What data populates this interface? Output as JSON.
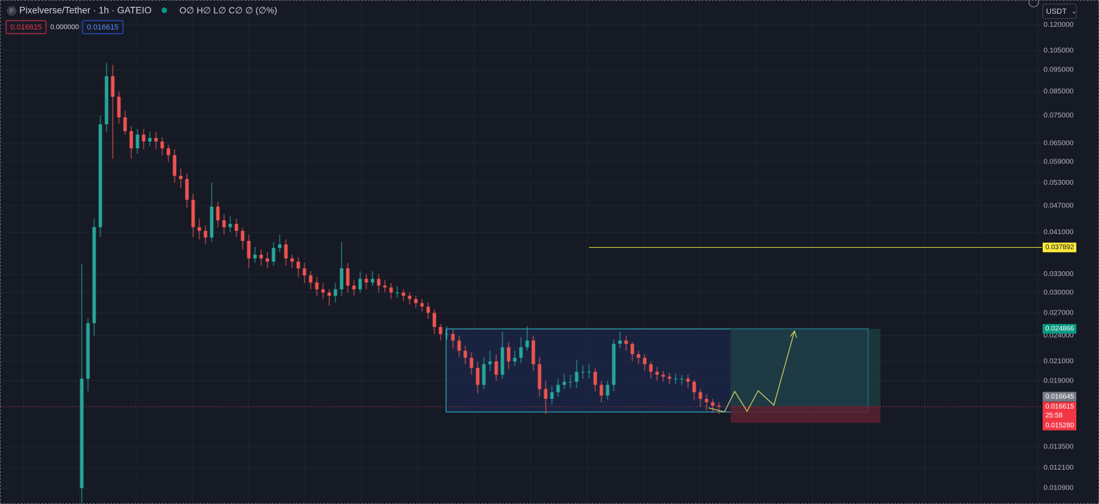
{
  "chart_data": {
    "type": "candlestick",
    "title": "Pixelverse/Tether · 1h · GATEIO",
    "legend_text": "O∅ H∅ L∅ C∅ ∅ (∅%)",
    "currency": "USDT",
    "header_values": [
      "0.016615",
      "0.000000",
      "0.016615"
    ],
    "countdown": "25:58",
    "log_scale": true,
    "up_color": "#26a69a",
    "down_color": "#ef5350",
    "ylim": [
      0.01,
      0.136
    ],
    "yticks": [
      {
        "value": 0.12,
        "label": "0.120000"
      },
      {
        "value": 0.105,
        "label": "0.105000"
      },
      {
        "value": 0.095,
        "label": "0.095000"
      },
      {
        "value": 0.085,
        "label": "0.085000"
      },
      {
        "value": 0.075,
        "label": "0.075000"
      },
      {
        "value": 0.065,
        "label": "0.065000"
      },
      {
        "value": 0.059,
        "label": "0.059000"
      },
      {
        "value": 0.053,
        "label": "0.053000"
      },
      {
        "value": 0.047,
        "label": "0.047000"
      },
      {
        "value": 0.041,
        "label": "0.041000"
      },
      {
        "value": 0.033,
        "label": "0.033000"
      },
      {
        "value": 0.03,
        "label": "0.030000"
      },
      {
        "value": 0.027,
        "label": "0.027000"
      },
      {
        "value": 0.024,
        "label": "0.024000"
      },
      {
        "value": 0.021,
        "label": "0.021000"
      },
      {
        "value": 0.019,
        "label": "0.019000"
      },
      {
        "value": 0.0135,
        "label": "0.013500"
      },
      {
        "value": 0.0121,
        "label": "0.012100"
      },
      {
        "value": 0.0109,
        "label": "0.010900"
      }
    ],
    "price_labels": [
      {
        "value": 0.037892,
        "label": "0.037892",
        "color": "#ffeb3b"
      },
      {
        "value": 0.024866,
        "label": "0.024866",
        "color": "#089981"
      },
      {
        "value": 0.016645,
        "label": "0.016645",
        "color": "#787b86"
      },
      {
        "value": 0.016615,
        "label": "0.016615",
        "color": "#f23645"
      },
      {
        "value": 0.01528,
        "label": "0.015280",
        "color": "#f23645"
      }
    ],
    "open": [
      0.0109,
      0.0192,
      0.0256,
      0.0421,
      0.0717,
      0.092,
      0.0827,
      0.0743,
      0.0692,
      0.0633,
      0.068,
      0.0656,
      0.0668,
      0.0656,
      0.0633,
      0.0611,
      0.0549,
      0.054,
      0.0485,
      0.0421,
      0.0413,
      0.0399,
      0.0468,
      0.0436,
      0.0421,
      0.0428,
      0.0413,
      0.0392,
      0.0358,
      0.0365,
      0.0358,
      0.0352,
      0.0378,
      0.0385,
      0.0358,
      0.0352,
      0.034,
      0.0328,
      0.0316,
      0.0305,
      0.03,
      0.0295,
      0.0305,
      0.034,
      0.0311,
      0.0305,
      0.0322,
      0.0316,
      0.0322,
      0.0311,
      0.0308,
      0.03,
      0.03,
      0.0295,
      0.029,
      0.0284,
      0.0279,
      0.027,
      0.0251,
      0.0242,
      0.0242,
      0.0234,
      0.0222,
      0.0214,
      0.0203,
      0.0186,
      0.0207,
      0.021,
      0.0196,
      0.0226,
      0.021,
      0.0214,
      0.0226,
      0.0234,
      0.0207,
      0.0182,
      0.0173,
      0.0179,
      0.0186,
      0.0189,
      0.0189,
      0.0199,
      0.0199,
      0.0199,
      0.0186,
      0.0176,
      0.0186,
      0.023,
      0.0234,
      0.023,
      0.0218,
      0.0214,
      0.0207,
      0.0199,
      0.0196,
      0.0194,
      0.0192,
      0.0192,
      0.0192,
      0.0189,
      0.0179,
      0.0173,
      0.017,
      0.0167
    ],
    "high": [
      0.0348,
      0.0262,
      0.044,
      0.075,
      0.0985,
      0.0975,
      0.085,
      0.077,
      0.071,
      0.07,
      0.07,
      0.069,
      0.069,
      0.067,
      0.0645,
      0.063,
      0.057,
      0.0555,
      0.05,
      0.044,
      0.0425,
      0.053,
      0.048,
      0.045,
      0.0445,
      0.044,
      0.042,
      0.0405,
      0.038,
      0.0375,
      0.037,
      0.039,
      0.0405,
      0.0395,
      0.0365,
      0.036,
      0.035,
      0.0335,
      0.0325,
      0.0315,
      0.0305,
      0.0315,
      0.039,
      0.035,
      0.032,
      0.0335,
      0.033,
      0.0335,
      0.033,
      0.032,
      0.0315,
      0.031,
      0.0305,
      0.03,
      0.0295,
      0.029,
      0.0285,
      0.0275,
      0.0255,
      0.0252,
      0.0248,
      0.024,
      0.0228,
      0.022,
      0.021,
      0.0215,
      0.0222,
      0.0218,
      0.0245,
      0.0232,
      0.0222,
      0.0238,
      0.0252,
      0.024,
      0.0215,
      0.019,
      0.0185,
      0.0192,
      0.0197,
      0.0196,
      0.0212,
      0.0206,
      0.0207,
      0.0203,
      0.019,
      0.019,
      0.0235,
      0.0245,
      0.024,
      0.0232,
      0.0222,
      0.0218,
      0.021,
      0.0204,
      0.02,
      0.0198,
      0.0197,
      0.0196,
      0.0196,
      0.0191,
      0.0182,
      0.0177,
      0.0173,
      0.017
    ],
    "low": [
      0.0099,
      0.018,
      0.024,
      0.04,
      0.069,
      0.06,
      0.072,
      0.068,
      0.06,
      0.0615,
      0.063,
      0.064,
      0.063,
      0.061,
      0.059,
      0.053,
      0.0515,
      0.0465,
      0.04,
      0.0395,
      0.0385,
      0.039,
      0.042,
      0.0405,
      0.041,
      0.04,
      0.0375,
      0.034,
      0.035,
      0.0345,
      0.034,
      0.0345,
      0.037,
      0.0345,
      0.034,
      0.0325,
      0.0315,
      0.0305,
      0.0295,
      0.029,
      0.028,
      0.0285,
      0.0295,
      0.03,
      0.0295,
      0.03,
      0.0305,
      0.031,
      0.03,
      0.03,
      0.029,
      0.0292,
      0.0287,
      0.0282,
      0.0277,
      0.0272,
      0.0262,
      0.0242,
      0.0234,
      0.0235,
      0.0225,
      0.0215,
      0.0207,
      0.0196,
      0.0178,
      0.0182,
      0.02,
      0.019,
      0.0192,
      0.0202,
      0.0205,
      0.0208,
      0.0222,
      0.02,
      0.0175,
      0.016,
      0.0168,
      0.0175,
      0.0182,
      0.0183,
      0.0183,
      0.0192,
      0.0192,
      0.018,
      0.017,
      0.0172,
      0.018,
      0.0225,
      0.0222,
      0.021,
      0.0207,
      0.02,
      0.0192,
      0.019,
      0.0189,
      0.0187,
      0.0187,
      0.0186,
      0.0183,
      0.0172,
      0.0166,
      0.0163,
      0.0161,
      0.016
    ],
    "close": [
      0.0192,
      0.0256,
      0.0421,
      0.0717,
      0.092,
      0.0827,
      0.0743,
      0.0692,
      0.0633,
      0.068,
      0.0656,
      0.0668,
      0.0656,
      0.0633,
      0.0611,
      0.0549,
      0.054,
      0.0485,
      0.0421,
      0.0413,
      0.0399,
      0.0468,
      0.0436,
      0.0421,
      0.0428,
      0.0413,
      0.0392,
      0.0358,
      0.0365,
      0.0358,
      0.0352,
      0.0378,
      0.0385,
      0.0358,
      0.0352,
      0.034,
      0.0328,
      0.0316,
      0.0305,
      0.03,
      0.0295,
      0.0305,
      0.034,
      0.0311,
      0.0305,
      0.0322,
      0.0316,
      0.0322,
      0.0311,
      0.0308,
      0.03,
      0.03,
      0.0295,
      0.029,
      0.0284,
      0.0279,
      0.027,
      0.0251,
      0.0242,
      0.0242,
      0.0234,
      0.0222,
      0.0214,
      0.0203,
      0.0186,
      0.0207,
      0.021,
      0.0196,
      0.0226,
      0.021,
      0.0214,
      0.0226,
      0.0234,
      0.0207,
      0.0182,
      0.0173,
      0.0179,
      0.0186,
      0.0189,
      0.0189,
      0.0199,
      0.0199,
      0.0199,
      0.0186,
      0.0176,
      0.0186,
      0.023,
      0.0234,
      0.023,
      0.0218,
      0.0214,
      0.0207,
      0.0199,
      0.0196,
      0.0194,
      0.0192,
      0.0192,
      0.0192,
      0.0189,
      0.0179,
      0.0173,
      0.017,
      0.0167,
      0.0166
    ]
  }
}
